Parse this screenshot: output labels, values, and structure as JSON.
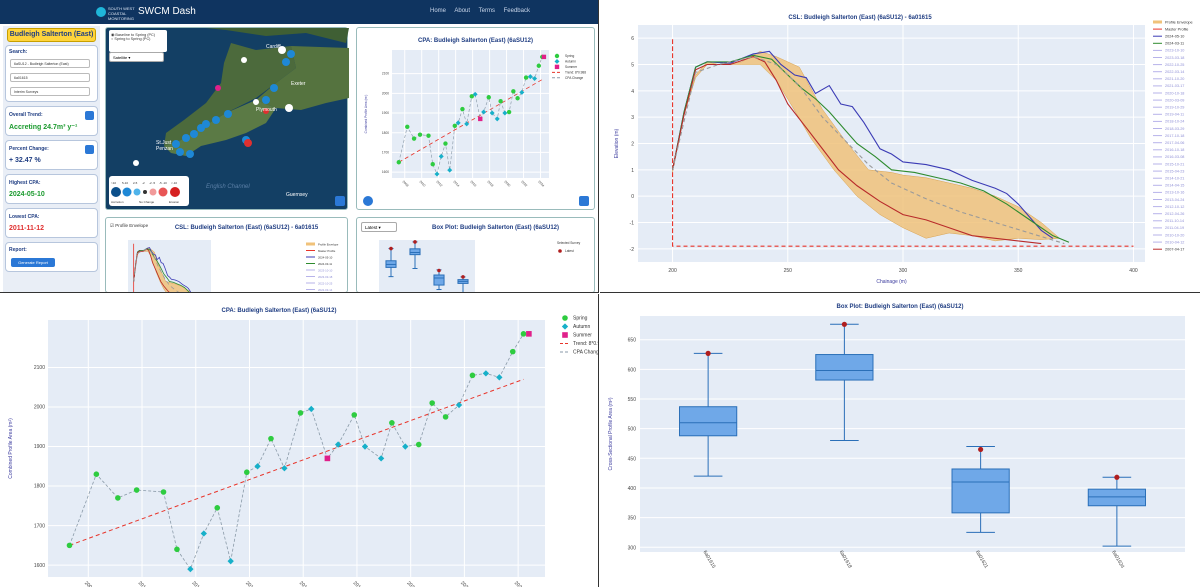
{
  "app": {
    "title": "SWCM Dash",
    "brand": "SOUTH WEST COASTAL MONITORING",
    "nav": [
      "Home",
      "About",
      "Terms",
      "Feedback"
    ]
  },
  "sidebar": {
    "site": "Budleigh Salterton (East)",
    "search_label": "Search:",
    "search_values": [
      "6aSU12 - Budleigh Salterton (East)",
      "6a01615",
      "Interim Surveys"
    ],
    "overall_trend_label": "Overall Trend:",
    "overall_trend_value": "Accreting 24.7m³ y⁻¹",
    "percent_change_label": "Percent Change:",
    "percent_change_value": "+ 32.47 %",
    "highest_cpa_label": "Highest CPA:",
    "highest_cpa_value": "2024-05-10",
    "lowest_cpa_label": "Lowest CPA:",
    "lowest_cpa_value": "2011-11-12",
    "report_label": "Report:",
    "report_button": "Generate Report"
  },
  "map": {
    "radio1": "Baseline to Spring (PC)",
    "radio2": "Spring to Spring (PC)",
    "select": "Satellite",
    "labels": [
      "St.Just",
      "Penzan",
      "Plymouth",
      "Exeter",
      "Cardiff",
      "Guernsey",
      "English Channel"
    ],
    "legend_labels": [
      "Accretion",
      "No Change",
      "Erosion"
    ],
    "legend_bins": [
      ">10",
      "5-10",
      "2-5",
      "-2",
      "-2 -5",
      "-5 -10",
      "<-10"
    ]
  },
  "colors": {
    "spring": "#2ecc40",
    "autumn": "#17b0c9",
    "summer": "#e0208a",
    "trend": "#e8342a",
    "envelope": "#f0c27a",
    "box": "#6fa8e8",
    "axis": "#3b3b9e"
  },
  "cpa": {
    "title": "CPA: Budleigh Salterton (East) (6aSU12)",
    "ylabel": "Combined Profile Area (m²)",
    "legend": [
      "Spring",
      "Autumn",
      "Summer",
      "Trend: 8*0.988",
      "CPA Change"
    ]
  },
  "csl": {
    "title": "CSL: Budleigh Salterton (East) (6aSU12) - 6a01615",
    "xlabel": "Chainage (m)",
    "ylabel": "Elevation (m)",
    "checkbox": "Profile Envelope",
    "legend": [
      "Profile Envelope",
      "Master Profile",
      "2024-05-10",
      "2024-03-11",
      "2023-10-10",
      "2023-03-18",
      "2022-10-25",
      "2022-03-14",
      "2021-10-20",
      "2021-03-17",
      "2020-10-18",
      "2020-03-09",
      "2019-10-29",
      "2019-04-11",
      "2018-10-24",
      "2018-03-29",
      "2017-10-18",
      "2017-04-06",
      "2016-10-18",
      "2016-03-08",
      "2015-10-21",
      "2015-04-23",
      "2014-10-21",
      "2014-04-15",
      "2013-10-16",
      "2013-04-24",
      "2012-10-12",
      "2012-04-26",
      "2011-10-14",
      "2011-04-19",
      "2010-10-20",
      "2010-04-12",
      "2007-04-17"
    ]
  },
  "box": {
    "title": "Box Plot: Budleigh Salterton (East) (6aSU12)",
    "ylabel": "Cross-Sectional Profile Area (m²)",
    "select": "Latest",
    "legend_title": "Selected Survey",
    "legend": "Latest",
    "categories": [
      "6a01615",
      "6a01618",
      "6a01621",
      "6a01624"
    ]
  },
  "chart_data": [
    {
      "type": "scatter",
      "title": "CPA: Budleigh Salterton (East) (6aSU12)",
      "ylabel": "Combined Profile Area (m²)",
      "x": [
        2007.3,
        2008.3,
        2009.1,
        2009.8,
        2010.8,
        2011.3,
        2011.8,
        2012.3,
        2012.8,
        2013.3,
        2013.9,
        2014.3,
        2014.8,
        2015.3,
        2015.9,
        2016.3,
        2016.9,
        2017.3,
        2017.9,
        2018.3,
        2018.9,
        2019.3,
        2019.8,
        2020.3,
        2020.8,
        2021.3,
        2021.8,
        2022.3,
        2022.8,
        2023.3,
        2023.8,
        2024.2,
        2024.4
      ],
      "y": [
        1650,
        1830,
        1770,
        1790,
        1785,
        1640,
        1590,
        1680,
        1745,
        1610,
        1835,
        1850,
        1920,
        1845,
        1985,
        1995,
        1870,
        1905,
        1980,
        1900,
        1870,
        1960,
        1900,
        1905,
        2010,
        1975,
        2005,
        2080,
        2085,
        2075,
        2140,
        2185,
        2185
      ],
      "season": [
        "spring",
        "spring",
        "spring",
        "spring",
        "spring",
        "spring",
        "autumn",
        "autumn",
        "spring",
        "autumn",
        "spring",
        "autumn",
        "spring",
        "autumn",
        "spring",
        "autumn",
        "summer",
        "autumn",
        "spring",
        "autumn",
        "autumn",
        "spring",
        "autumn",
        "spring",
        "spring",
        "spring",
        "autumn",
        "spring",
        "autumn",
        "autumn",
        "spring",
        "spring",
        "summer"
      ],
      "trend": {
        "x": [
          2007.3,
          2024.2
        ],
        "y": [
          1650,
          2070
        ]
      },
      "xticks": [
        2008,
        2010,
        2012,
        2014,
        2016,
        2018,
        2020,
        2022,
        2024
      ],
      "yticks": [
        1600,
        1700,
        1800,
        1900,
        2000,
        2100
      ],
      "ylim": [
        1570,
        2220
      ]
    },
    {
      "type": "line",
      "title": "CSL: Budleigh Salterton (East) (6aSU12) - 6a01615",
      "xlabel": "Chainage (m)",
      "ylabel": "Elevation (m)",
      "xlim": [
        185,
        405
      ],
      "ylim": [
        -2.5,
        6.5
      ],
      "xticks": [
        200,
        250,
        300,
        350,
        400
      ],
      "yticks": [
        -2,
        -1,
        0,
        1,
        2,
        3,
        4,
        5,
        6
      ],
      "envelope_upper": [
        [
          200,
          1.0
        ],
        [
          205,
          3.2
        ],
        [
          210,
          4.6
        ],
        [
          215,
          5.1
        ],
        [
          220,
          5.0
        ],
        [
          230,
          5.1
        ],
        [
          238,
          5.5
        ],
        [
          245,
          5.3
        ],
        [
          255,
          4.9
        ],
        [
          265,
          3.3
        ],
        [
          275,
          2.1
        ],
        [
          285,
          1.0
        ],
        [
          295,
          0.9
        ],
        [
          300,
          0.8
        ],
        [
          310,
          0.7
        ],
        [
          320,
          0.5
        ],
        [
          330,
          0.3
        ],
        [
          340,
          0.0
        ],
        [
          350,
          -0.4
        ],
        [
          360,
          -1.0
        ],
        [
          368,
          -1.6
        ]
      ],
      "envelope_lower": [
        [
          368,
          -1.6
        ],
        [
          360,
          -1.65
        ],
        [
          350,
          -1.6
        ],
        [
          340,
          -1.7
        ],
        [
          330,
          -1.5
        ],
        [
          320,
          -1.4
        ],
        [
          310,
          -1.6
        ],
        [
          300,
          -1.2
        ],
        [
          290,
          -0.7
        ],
        [
          280,
          0.0
        ],
        [
          270,
          1.0
        ],
        [
          260,
          2.2
        ],
        [
          252,
          3.4
        ],
        [
          245,
          4.4
        ],
        [
          238,
          5.0
        ],
        [
          230,
          5.0
        ],
        [
          220,
          5.0
        ],
        [
          215,
          5.0
        ],
        [
          210,
          4.5
        ],
        [
          205,
          3.1
        ],
        [
          200,
          0.9
        ]
      ],
      "series": [
        {
          "name": "Master Profile",
          "points": [
            [
              200,
              -1.9
            ],
            [
              200,
              6.0
            ],
            [
              200,
              -1.9
            ],
            [
              400,
              -1.9
            ]
          ]
        },
        {
          "name": "2024-05-10",
          "points": [
            [
              200,
              1.0
            ],
            [
              205,
              3.2
            ],
            [
              210,
              4.9
            ],
            [
              215,
              5.1
            ],
            [
              225,
              5.05
            ],
            [
              235,
              5.4
            ],
            [
              242,
              5.5
            ],
            [
              247,
              5.0
            ],
            [
              253,
              4.6
            ],
            [
              258,
              4.5
            ],
            [
              262,
              3.9
            ],
            [
              268,
              4.2
            ],
            [
              273,
              3.5
            ],
            [
              278,
              3.4
            ],
            [
              283,
              2.8
            ],
            [
              290,
              1.8
            ],
            [
              295,
              1.6
            ],
            [
              300,
              1.3
            ],
            [
              310,
              1.2
            ],
            [
              320,
              1.0
            ],
            [
              330,
              0.6
            ],
            [
              340,
              0.3
            ],
            [
              345,
              0.1
            ],
            [
              350,
              -0.3
            ],
            [
              355,
              -0.8
            ],
            [
              360,
              -1.3
            ],
            [
              365,
              -1.6
            ]
          ]
        },
        {
          "name": "2024-03-11",
          "points": [
            [
              200,
              1.0
            ],
            [
              205,
              3.2
            ],
            [
              210,
              4.9
            ],
            [
              215,
              5.1
            ],
            [
              225,
              5.1
            ],
            [
              235,
              5.35
            ],
            [
              243,
              5.2
            ],
            [
              250,
              4.6
            ],
            [
              256,
              4.1
            ],
            [
              262,
              3.7
            ],
            [
              268,
              3.2
            ],
            [
              275,
              2.5
            ],
            [
              280,
              2.0
            ],
            [
              288,
              1.5
            ],
            [
              295,
              1.0
            ],
            [
              305,
              0.9
            ],
            [
              315,
              0.7
            ],
            [
              325,
              0.5
            ],
            [
              335,
              0.2
            ],
            [
              345,
              -0.3
            ],
            [
              355,
              -0.9
            ],
            [
              365,
              -1.5
            ],
            [
              372,
              -1.75
            ]
          ]
        },
        {
          "name": "2007-04-17",
          "points": [
            [
              200,
              1.0
            ],
            [
              205,
              3.1
            ],
            [
              210,
              4.8
            ],
            [
              215,
              5.0
            ],
            [
              225,
              5.0
            ],
            [
              235,
              5.3
            ],
            [
              240,
              5.1
            ],
            [
              245,
              4.4
            ],
            [
              250,
              3.5
            ],
            [
              258,
              2.6
            ],
            [
              265,
              1.8
            ],
            [
              272,
              1.0
            ],
            [
              280,
              0.4
            ],
            [
              290,
              -0.2
            ],
            [
              300,
              -0.7
            ],
            [
              310,
              -0.9
            ],
            [
              320,
              -1.2
            ],
            [
              330,
              -1.5
            ],
            [
              340,
              -1.6
            ],
            [
              350,
              -1.7
            ],
            [
              360,
              -1.8
            ]
          ]
        },
        {
          "name": "dashed",
          "points": [
            [
              200,
              1.0
            ],
            [
              210,
              4.7
            ],
            [
              220,
              5.0
            ],
            [
              235,
              5.3
            ],
            [
              245,
              5.0
            ],
            [
              255,
              4.2
            ],
            [
              265,
              3.0
            ],
            [
              275,
              2.1
            ],
            [
              285,
              1.2
            ],
            [
              295,
              0.5
            ],
            [
              310,
              -0.1
            ],
            [
              325,
              -0.6
            ],
            [
              340,
              -1.0
            ],
            [
              355,
              -1.4
            ],
            [
              370,
              -1.8
            ]
          ]
        }
      ]
    },
    {
      "type": "box",
      "title": "Box Plot: Budleigh Salterton (East) (6aSU12)",
      "ylabel": "Cross-Sectional Profile Area (m²)",
      "categories": [
        "6a01615",
        "6a01618",
        "6a01621",
        "6a01624"
      ],
      "whisker_low": [
        420,
        480,
        325,
        302
      ],
      "q1": [
        488,
        582,
        358,
        370
      ],
      "median": [
        510,
        598,
        410,
        385
      ],
      "q3": [
        537,
        625,
        432,
        398
      ],
      "whisker_high": [
        627,
        676,
        470,
        418
      ],
      "latest": [
        627,
        676,
        465,
        418
      ],
      "yticks": [
        300,
        350,
        400,
        450,
        500,
        550,
        600,
        650
      ],
      "ylim": [
        292,
        690
      ]
    }
  ]
}
